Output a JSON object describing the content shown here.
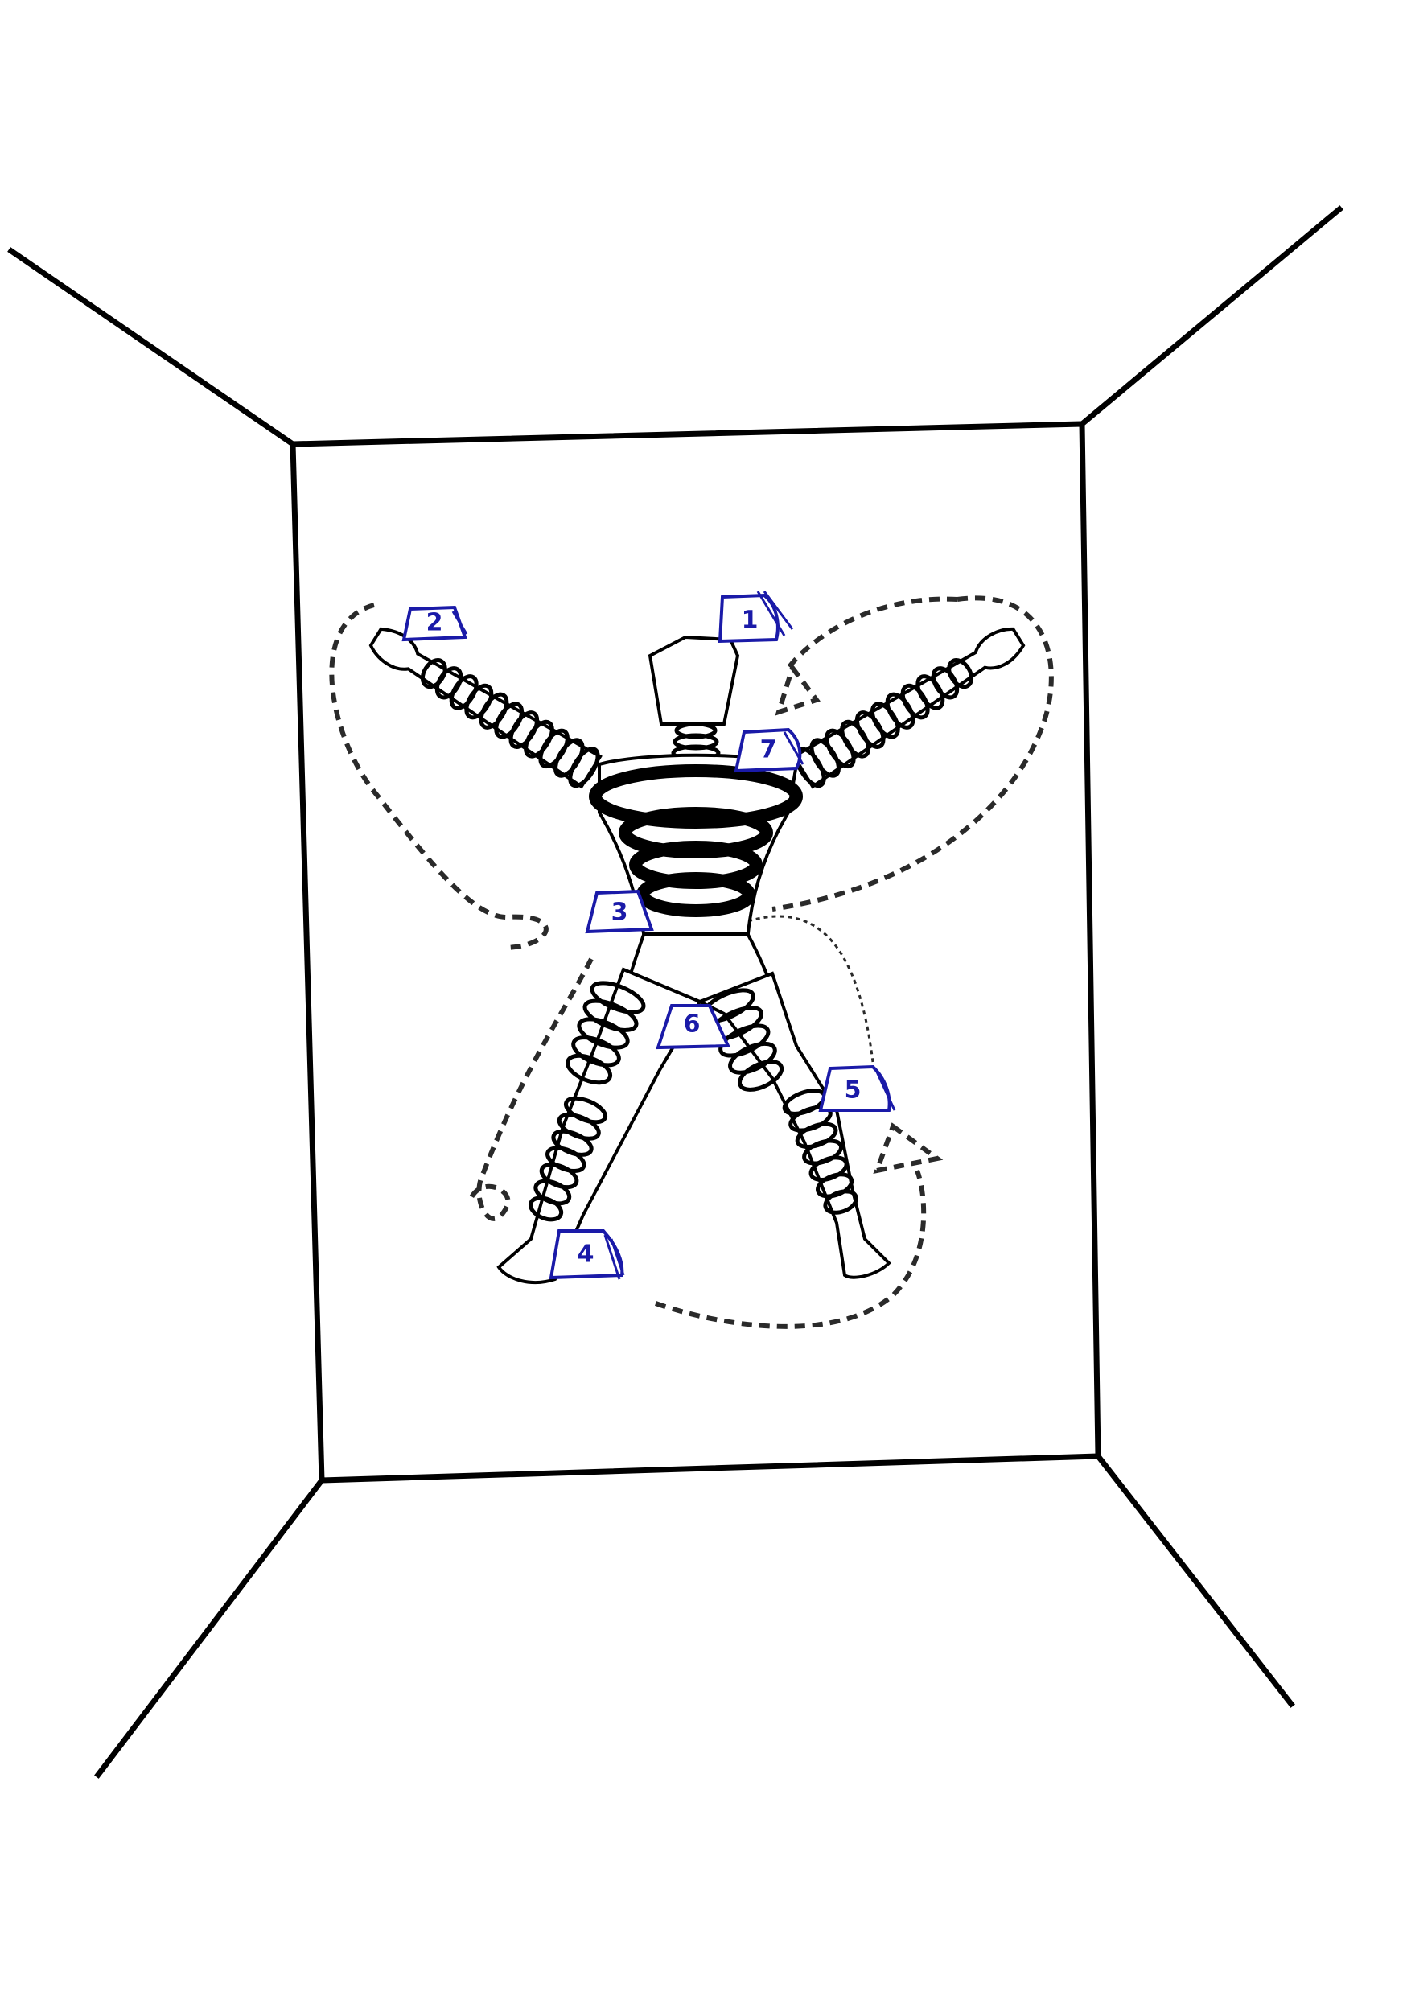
{
  "diagram": {
    "type": "annotated-figure",
    "label_color": "#1a1aa8",
    "line_color": "#000000",
    "labels": [
      "1",
      "2",
      "3",
      "4",
      "5",
      "6",
      "7"
    ]
  }
}
